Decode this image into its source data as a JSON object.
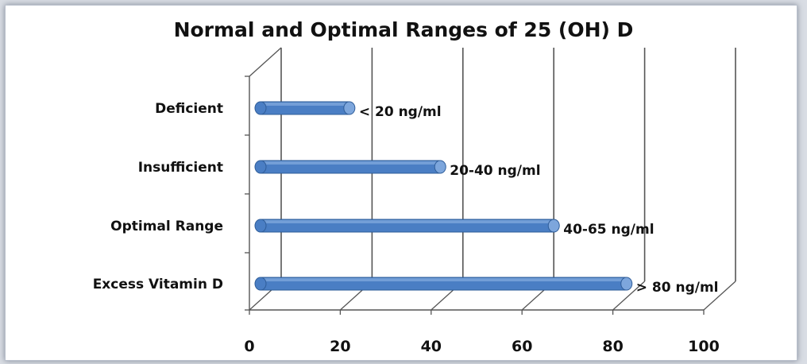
{
  "chart_data": {
    "type": "bar",
    "orientation": "horizontal",
    "style": "3d-cylinder",
    "title": "Normal and Optimal Ranges of 25 (OH) D",
    "categories": [
      "Deficient",
      "Insufficient",
      "Optimal Range",
      "Excess Vitamin D"
    ],
    "values": [
      22,
      42,
      67,
      83
    ],
    "data_labels": [
      "< 20 ng/ml",
      "20-40 ng/ml",
      "40-65 ng/ml",
      "> 80 ng/ml"
    ],
    "xlim": [
      0,
      100
    ],
    "xticks": [
      "0",
      "20",
      "40",
      "60",
      "80",
      "100"
    ],
    "grid": true,
    "legend": "none",
    "colors": {
      "bar": "#4a7ec4",
      "bar_top": "#7da6dc",
      "grid": "#555555"
    }
  }
}
